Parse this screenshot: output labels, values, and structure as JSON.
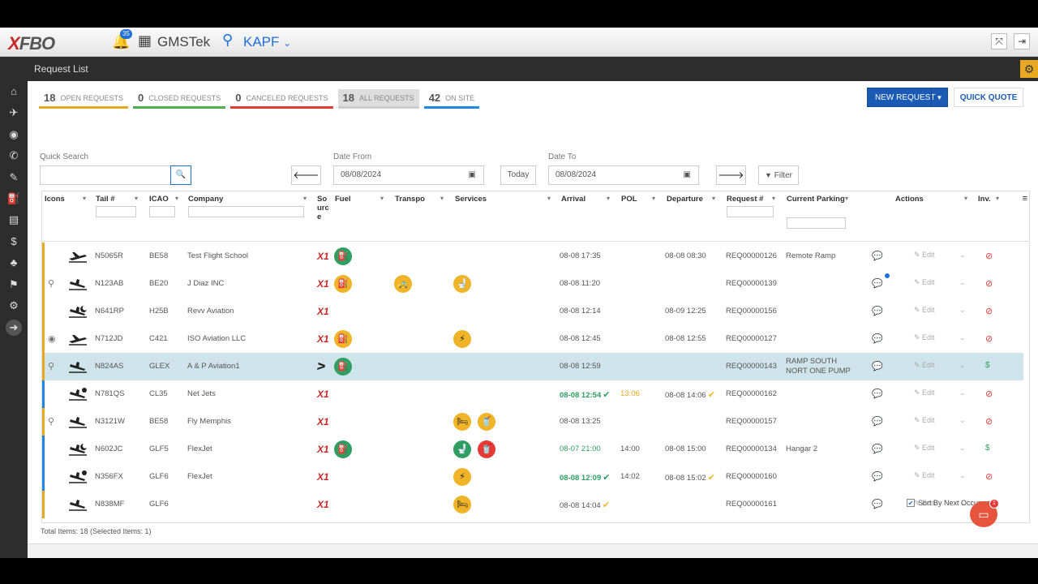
{
  "app": {
    "logo_a": "X",
    "logo_b": "FBO",
    "notification_count": "35",
    "company": "GMSTek",
    "airport": "KAPF",
    "airport_caret": "⌄",
    "fullscreen_icon": "⤧",
    "logout_icon": "⇥"
  },
  "page": {
    "title": "Request List",
    "gear_icon": "⚙"
  },
  "sidebar": {
    "items": [
      "⌂",
      "✈",
      "◉",
      "✆",
      "✎",
      "⛽",
      "▤",
      "$",
      "♣",
      "⚑",
      "⚙",
      "➜"
    ]
  },
  "tabs": [
    {
      "count": "18",
      "label": "Open Requests"
    },
    {
      "count": "0",
      "label": "Closed Requests"
    },
    {
      "count": "0",
      "label": "Canceled Requests"
    },
    {
      "count": "18",
      "label": "All Requests"
    },
    {
      "count": "42",
      "label": "On Site"
    }
  ],
  "buttons": {
    "new_request": "NEW REQUEST",
    "new_request_caret": "▼",
    "quick_quote": "QUICK QUOTE",
    "today": "Today",
    "filter": "Filter",
    "prev": "🡐",
    "next": "🡒",
    "search_icon": "🔍"
  },
  "filters": {
    "quick_search_label": "Quick Search",
    "quick_search_value": "",
    "date_from_label": "Date From",
    "date_from": "08/08/2024",
    "date_to_label": "Date To",
    "date_to": "08/08/2024",
    "calendar_icon": "▣"
  },
  "columns": {
    "icons": "Icons",
    "tail": "Tail #",
    "icao": "ICAO",
    "company": "Company",
    "source": "So urc e",
    "fuel": "Fuel",
    "transpo": "Transpo",
    "services": "Services",
    "arrival": "Arrival",
    "pol": "POL",
    "departure": "Departure",
    "request": "Request #",
    "parking": "Current Parking",
    "actions": "Actions",
    "inv": "Inv.",
    "sort_arrow": "▾",
    "menu_icon": "≡"
  },
  "icons": {
    "source_x": "X1",
    "source_a": "ᐳ",
    "fuel": "⛽",
    "taxi": "🚕",
    "lav": "🚽",
    "gpu": "⚡",
    "hotel": "🛏",
    "catering": "🥤",
    "map_pin": "⚲",
    "chat": "💬",
    "edit": "✎ Edit",
    "edit_caret": "⌄",
    "stop": "⊘",
    "dollar": "$",
    "tick": "✔"
  },
  "rows": [
    {
      "tail": "N5065R",
      "icao": "BE58",
      "company": "Test Flight School",
      "arrival": "08-08 17:35",
      "pol": "",
      "departure": "08-08 08:30",
      "request": "REQ00000126",
      "parking": "Remote Ramp",
      "parking2": ""
    },
    {
      "tail": "N123AB",
      "icao": "BE20",
      "company": "J Diaz INC",
      "arrival": "08-08 11:20",
      "pol": "",
      "departure": "",
      "request": "REQ00000139",
      "parking": "",
      "parking2": ""
    },
    {
      "tail": "N641RP",
      "icao": "H25B",
      "company": "Revv Aviation",
      "arrival": "08-08 12:14",
      "pol": "",
      "departure": "08-09 12:25",
      "request": "REQ00000156",
      "parking": "",
      "parking2": ""
    },
    {
      "tail": "N712JD",
      "icao": "C421",
      "company": "ISO Aviation LLC",
      "arrival": "08-08 12:45",
      "pol": "",
      "departure": "08-08 12:55",
      "request": "REQ00000127",
      "parking": "",
      "parking2": ""
    },
    {
      "tail": "N824AS",
      "icao": "GLEX",
      "company": "A & P Aviation1",
      "arrival": "08-08 12:59",
      "pol": "",
      "departure": "",
      "request": "REQ00000143",
      "parking": "RAMP SOUTH",
      "parking2": "NORT ONE PUMP"
    },
    {
      "tail": "N781QS",
      "icao": "CL35",
      "company": "Net Jets",
      "arrival": "08-08 12:54",
      "pol": "13:06",
      "departure": "08-08 14:06",
      "request": "REQ00000162",
      "parking": "",
      "parking2": ""
    },
    {
      "tail": "N3121W",
      "icao": "BE58",
      "company": "Fly Memphis",
      "arrival": "08-08 13:25",
      "pol": "",
      "departure": "",
      "request": "REQ00000157",
      "parking": "",
      "parking2": ""
    },
    {
      "tail": "N602JC",
      "icao": "GLF5",
      "company": "FlexJet",
      "arrival": "08-07 21:00",
      "pol": "14:00",
      "departure": "08-08 15:00",
      "request": "REQ00000134",
      "parking": "Hangar 2",
      "parking2": ""
    },
    {
      "tail": "N356FX",
      "icao": "GLF6",
      "company": "FlexJet",
      "arrival": "08-08 12:09",
      "pol": "14:02",
      "departure": "08-08 15:02",
      "request": "REQ00000160",
      "parking": "",
      "parking2": ""
    },
    {
      "tail": "N838MF",
      "icao": "GLF6",
      "company": "",
      "arrival": "08-08 14:04",
      "pol": "",
      "departure": "",
      "request": "REQ00000161",
      "parking": "",
      "parking2": ""
    }
  ],
  "footer": {
    "total": "Total Items: 18 (Selected Items: 1)",
    "sort_label": "Sort By Next Occurrence",
    "sort_check": "✔",
    "chat_icon": "▭",
    "chat_count": "1"
  }
}
